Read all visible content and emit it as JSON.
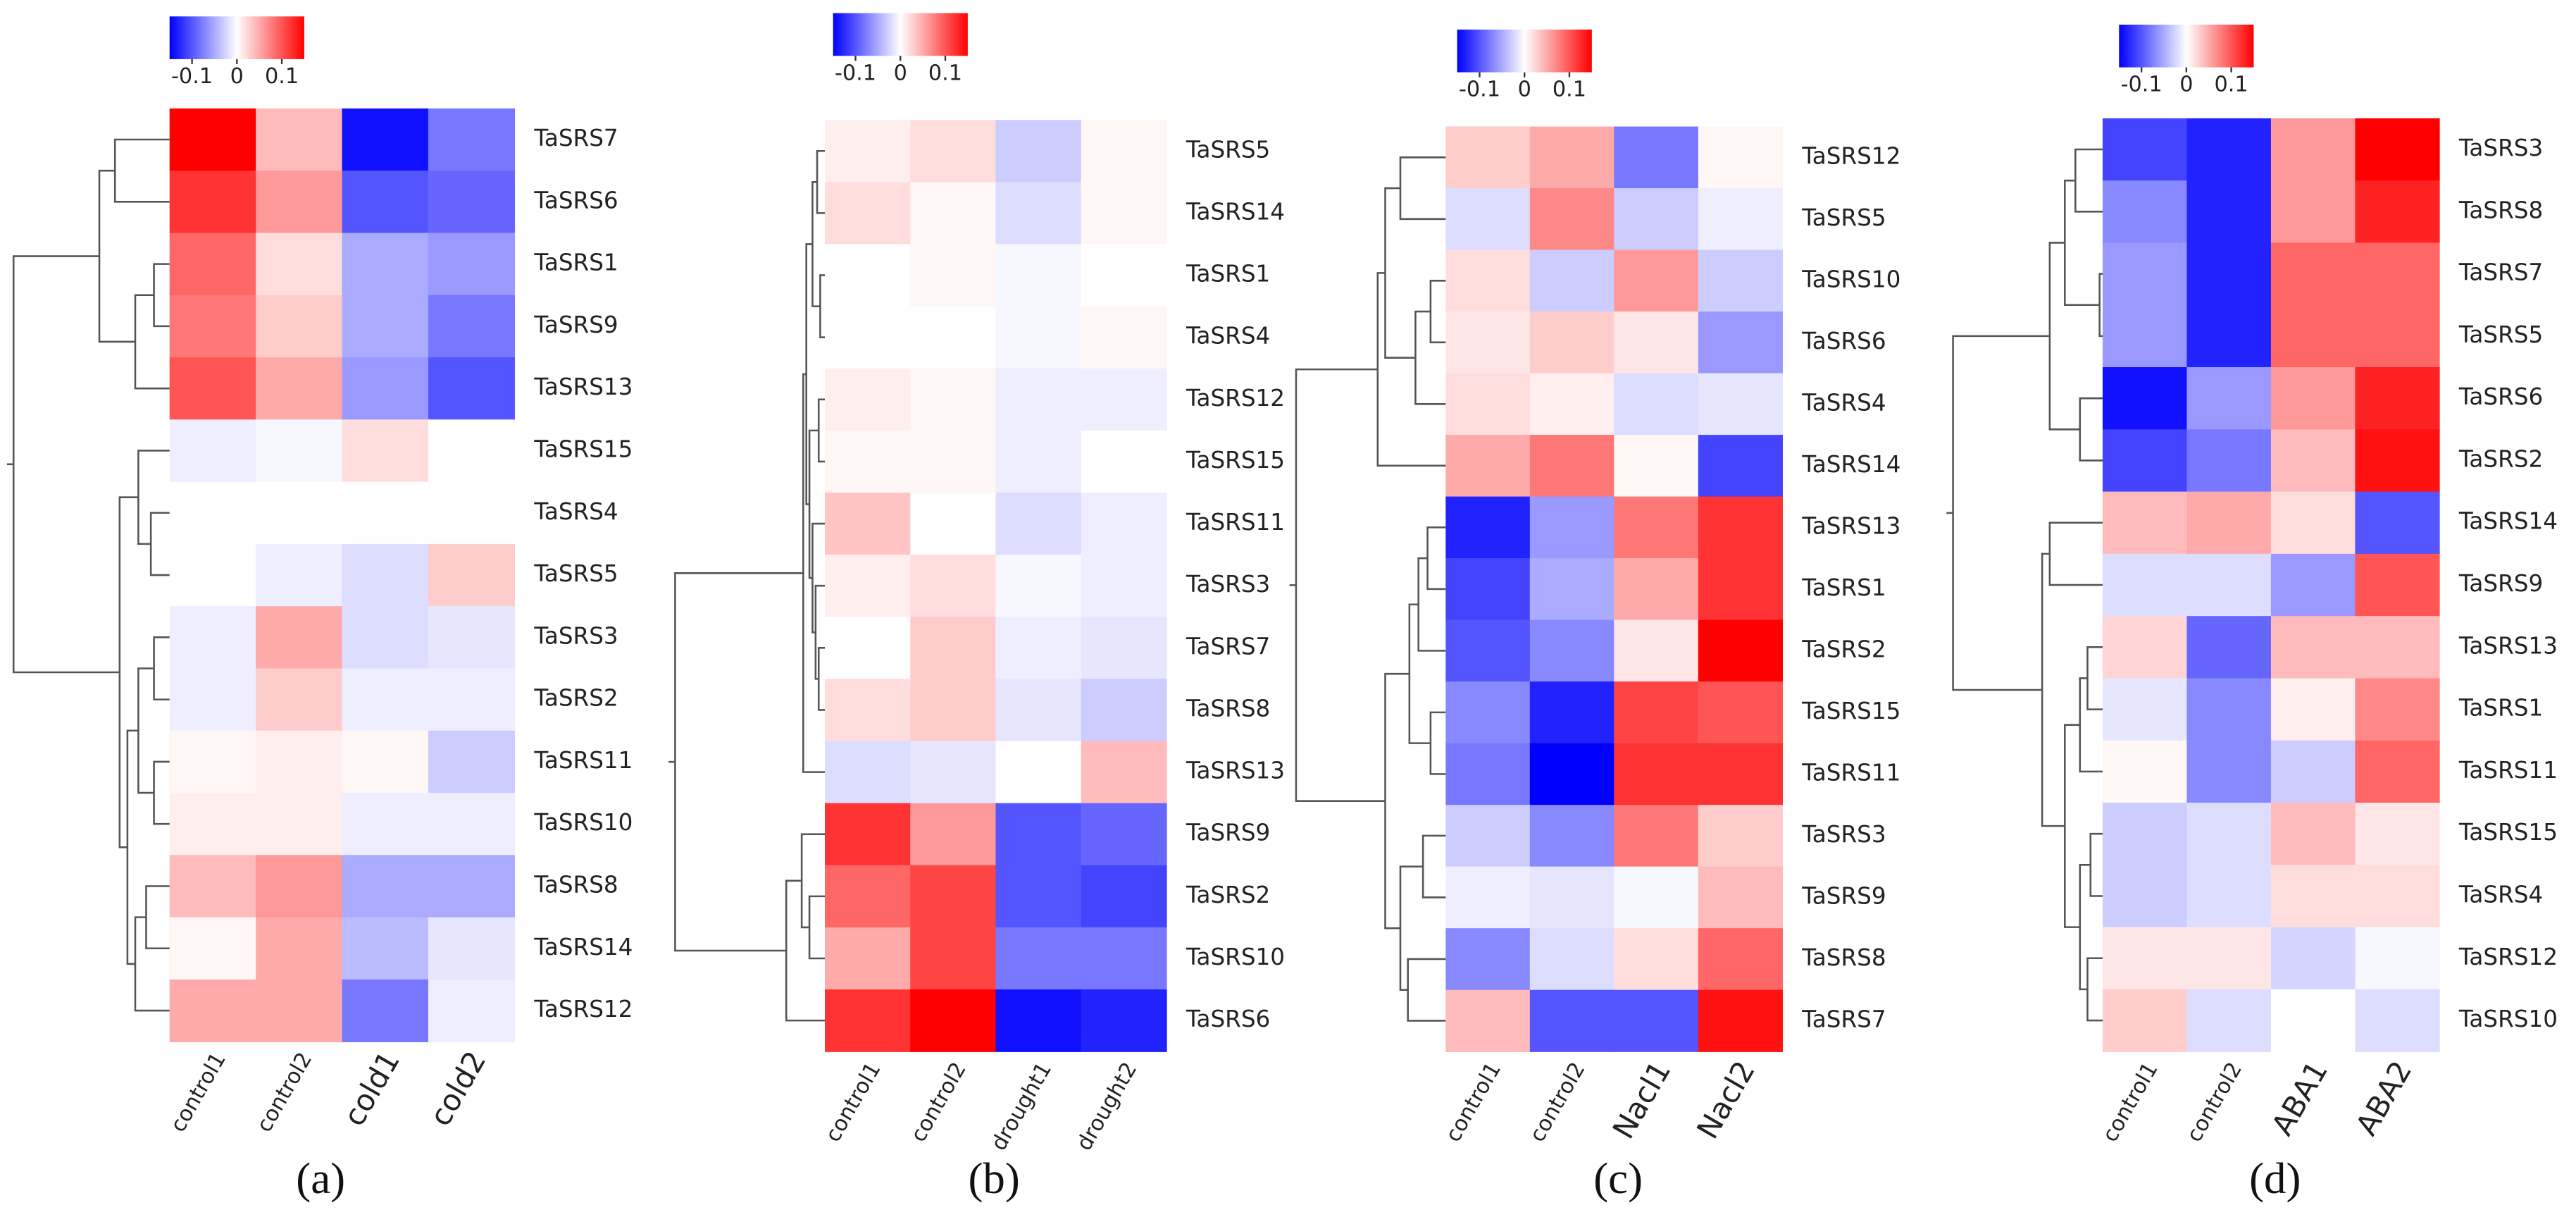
{
  "chart_data": [
    {
      "type": "heatmap",
      "title": "(a)",
      "columns": [
        "control1",
        "control2",
        "cold1",
        "cold2"
      ],
      "rows": [
        "TaSRS7",
        "TaSRS6",
        "TaSRS1",
        "TaSRS9",
        "TaSRS13",
        "TaSRS15",
        "TaSRS4",
        "TaSRS5",
        "TaSRS3",
        "TaSRS2",
        "TaSRS11",
        "TaSRS10",
        "TaSRS8",
        "TaSRS14",
        "TaSRS12"
      ],
      "values": [
        [
          0.15,
          0.04,
          -0.14,
          -0.08
        ],
        [
          0.12,
          0.06,
          -0.1,
          -0.09
        ],
        [
          0.09,
          0.02,
          -0.05,
          -0.06
        ],
        [
          0.08,
          0.03,
          -0.05,
          -0.08
        ],
        [
          0.1,
          0.05,
          -0.06,
          -0.1
        ],
        [
          -0.01,
          -0.005,
          0.02,
          0
        ],
        [
          0,
          0,
          0,
          0
        ],
        [
          0,
          -0.01,
          -0.02,
          0.03
        ],
        [
          -0.01,
          0.05,
          -0.02,
          -0.015
        ],
        [
          -0.01,
          0.03,
          -0.01,
          -0.01
        ],
        [
          0.005,
          0.01,
          0.005,
          -0.03
        ],
        [
          0.01,
          0.01,
          -0.01,
          -0.01
        ],
        [
          0.04,
          0.06,
          -0.05,
          -0.05
        ],
        [
          0.005,
          0.05,
          -0.04,
          -0.015
        ],
        [
          0.05,
          0.05,
          -0.08,
          -0.01
        ]
      ],
      "clim": [
        -0.15,
        0.15
      ],
      "colorbar_ticks": [
        -0.1,
        0,
        0.1
      ],
      "colormap": {
        "low": "#0000ff",
        "mid": "#ffffff",
        "high": "#ff0000"
      }
    },
    {
      "type": "heatmap",
      "title": "(b)",
      "columns": [
        "control1",
        "control2",
        "drought1",
        "drought2"
      ],
      "rows": [
        "TaSRS5",
        "TaSRS14",
        "TaSRS1",
        "TaSRS4",
        "TaSRS12",
        "TaSRS15",
        "TaSRS11",
        "TaSRS3",
        "TaSRS7",
        "TaSRS8",
        "TaSRS13",
        "TaSRS9",
        "TaSRS2",
        "TaSRS10",
        "TaSRS6"
      ],
      "values": [
        [
          0.01,
          0.02,
          -0.03,
          0.005
        ],
        [
          0.02,
          0.005,
          -0.02,
          0.005
        ],
        [
          0,
          0.005,
          -0.005,
          0
        ],
        [
          0,
          0,
          -0.005,
          0.005
        ],
        [
          0.01,
          0.005,
          -0.01,
          -0.01
        ],
        [
          0.005,
          0.005,
          -0.01,
          0
        ],
        [
          0.035,
          0,
          -0.02,
          -0.01
        ],
        [
          0.01,
          0.02,
          -0.005,
          -0.01
        ],
        [
          0,
          0.03,
          -0.01,
          -0.015
        ],
        [
          0.02,
          0.03,
          -0.015,
          -0.03
        ],
        [
          -0.02,
          -0.015,
          0,
          0.04
        ],
        [
          0.12,
          0.06,
          -0.1,
          -0.09
        ],
        [
          0.09,
          0.11,
          -0.1,
          -0.11
        ],
        [
          0.05,
          0.11,
          -0.08,
          -0.08
        ],
        [
          0.12,
          0.15,
          -0.14,
          -0.13
        ]
      ],
      "clim": [
        -0.15,
        0.15
      ],
      "colorbar_ticks": [
        -0.1,
        0,
        0.1
      ],
      "colormap": {
        "low": "#0000ff",
        "mid": "#ffffff",
        "high": "#ff0000"
      }
    },
    {
      "type": "heatmap",
      "title": "(c)",
      "columns": [
        "control1",
        "control2",
        "Nacl1",
        "Nacl2"
      ],
      "rows": [
        "TaSRS12",
        "TaSRS5",
        "TaSRS10",
        "TaSRS6",
        "TaSRS4",
        "TaSRS14",
        "TaSRS13",
        "TaSRS1",
        "TaSRS2",
        "TaSRS15",
        "TaSRS11",
        "TaSRS3",
        "TaSRS9",
        "TaSRS8",
        "TaSRS7"
      ],
      "values": [
        [
          0.03,
          0.05,
          -0.08,
          0.005
        ],
        [
          -0.02,
          0.07,
          -0.03,
          -0.01
        ],
        [
          0.02,
          -0.03,
          0.06,
          -0.03
        ],
        [
          0.015,
          0.03,
          0.015,
          -0.06
        ],
        [
          0.02,
          0.01,
          -0.02,
          -0.015
        ],
        [
          0.05,
          0.08,
          0.005,
          -0.11
        ],
        [
          -0.13,
          -0.06,
          0.08,
          0.12
        ],
        [
          -0.11,
          -0.05,
          0.05,
          0.12
        ],
        [
          -0.1,
          -0.07,
          0.015,
          0.15
        ],
        [
          -0.07,
          -0.13,
          0.11,
          0.1
        ],
        [
          -0.08,
          -0.15,
          0.12,
          0.12
        ],
        [
          -0.03,
          -0.07,
          0.08,
          0.03
        ],
        [
          -0.01,
          -0.015,
          -0.005,
          0.04
        ],
        [
          -0.07,
          -0.02,
          0.02,
          0.09
        ],
        [
          0.04,
          -0.1,
          -0.1,
          0.14
        ]
      ],
      "clim": [
        -0.15,
        0.15
      ],
      "colorbar_ticks": [
        -0.1,
        0,
        0.1
      ],
      "colormap": {
        "low": "#0000ff",
        "mid": "#ffffff",
        "high": "#ff0000"
      }
    },
    {
      "type": "heatmap",
      "title": "(d)",
      "columns": [
        "control1",
        "control2",
        "ABA1",
        "ABA2"
      ],
      "rows": [
        "TaSRS3",
        "TaSRS8",
        "TaSRS7",
        "TaSRS5",
        "TaSRS6",
        "TaSRS2",
        "TaSRS14",
        "TaSRS9",
        "TaSRS13",
        "TaSRS1",
        "TaSRS11",
        "TaSRS15",
        "TaSRS4",
        "TaSRS12",
        "TaSRS10"
      ],
      "values": [
        [
          -0.11,
          -0.13,
          0.06,
          0.15
        ],
        [
          -0.07,
          -0.13,
          0.06,
          0.13
        ],
        [
          -0.06,
          -0.13,
          0.09,
          0.09
        ],
        [
          -0.06,
          -0.13,
          0.09,
          0.09
        ],
        [
          -0.14,
          -0.06,
          0.06,
          0.13
        ],
        [
          -0.11,
          -0.08,
          0.04,
          0.14
        ],
        [
          0.04,
          0.05,
          0.02,
          -0.1
        ],
        [
          -0.02,
          -0.02,
          -0.06,
          0.1
        ],
        [
          0.025,
          -0.09,
          0.04,
          0.04
        ],
        [
          -0.015,
          -0.07,
          0.01,
          0.07
        ],
        [
          0.005,
          -0.07,
          -0.03,
          0.09
        ],
        [
          -0.03,
          -0.02,
          0.04,
          0.015
        ],
        [
          -0.03,
          -0.02,
          0.02,
          0.02
        ],
        [
          0.015,
          0.015,
          -0.025,
          -0.005
        ],
        [
          0.03,
          -0.02,
          0,
          -0.02
        ]
      ],
      "clim": [
        -0.15,
        0.15
      ],
      "colorbar_ticks": [
        -0.1,
        0,
        0.1
      ],
      "colormap": {
        "low": "#0000ff",
        "mid": "#ffffff",
        "high": "#ff0000"
      }
    }
  ]
}
